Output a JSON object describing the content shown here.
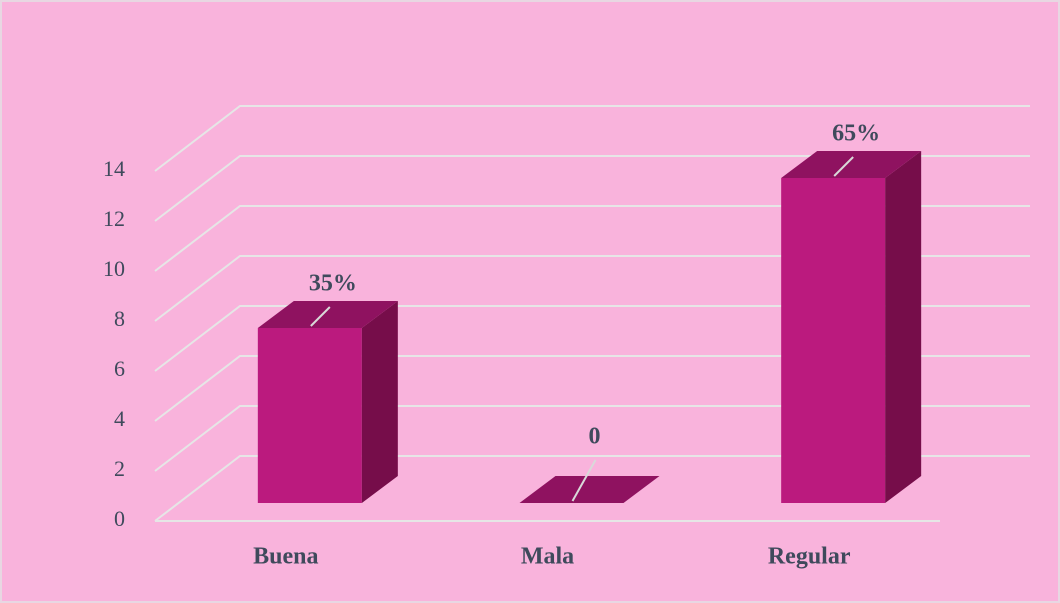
{
  "chart_data": {
    "type": "bar3d",
    "categories": [
      "Buena",
      "Mala",
      "Regular"
    ],
    "values": [
      7,
      0,
      13
    ],
    "value_labels": [
      "35%",
      "0",
      "65%"
    ],
    "color": "#bb1a7e",
    "ylim": [
      0,
      14
    ],
    "yticks": [
      0,
      2,
      4,
      6,
      8,
      10,
      12,
      14
    ],
    "grid": true
  }
}
